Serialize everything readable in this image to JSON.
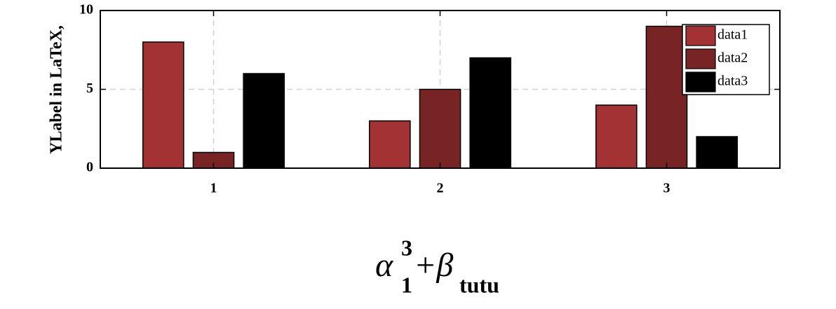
{
  "chart_data": {
    "type": "bar",
    "ylabel": "YLabel in LaTeX,",
    "xlabel": [
      "α",
      "3",
      "1",
      "+β",
      "tutu"
    ],
    "x": [
      1,
      2,
      3
    ],
    "xlim": [
      0.5,
      3.5
    ],
    "xticks": [
      1,
      2,
      3
    ],
    "ylim": [
      0,
      10
    ],
    "yticks": [
      0,
      5,
      10
    ],
    "grid": true,
    "legend": "northeast",
    "series": [
      {
        "name": "data1",
        "color": "#a23234",
        "values": [
          8,
          3,
          4
        ]
      },
      {
        "name": "data2",
        "color": "#782424",
        "values": [
          1,
          5,
          9
        ]
      },
      {
        "name": "data3",
        "color": "#000000",
        "values": [
          6,
          7,
          2
        ]
      }
    ]
  }
}
